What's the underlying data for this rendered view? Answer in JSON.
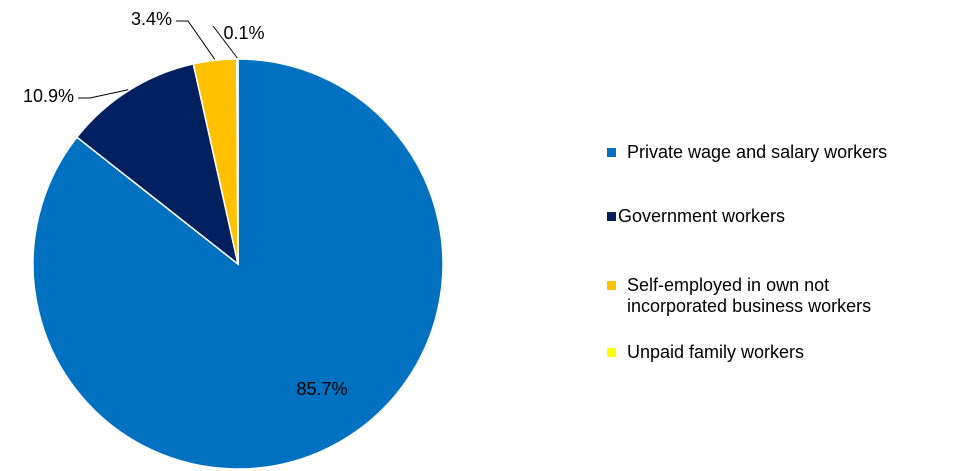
{
  "chart_data": {
    "type": "pie",
    "title": "",
    "slices": [
      {
        "name": "Private wage and salary workers",
        "value": 85.7,
        "label": "85.7%",
        "color": "#0070C0"
      },
      {
        "name": "Government workers",
        "value": 10.9,
        "label": "10.9%",
        "color": "#002060"
      },
      {
        "name": "Self-employed in own not incorporated business workers",
        "value": 3.4,
        "label": "3.4%",
        "color": "#FFC000"
      },
      {
        "name": "Unpaid family workers",
        "value": 0.1,
        "label": "0.1%",
        "color": "#FFFF00"
      }
    ],
    "legend_position": "right"
  },
  "legend": {
    "items": [
      {
        "label": "Private wage and salary workers",
        "color": "#0070C0"
      },
      {
        "label": "Government workers",
        "color": "#002060"
      },
      {
        "label": "Self-employed in own not\nincorporated business workers",
        "color": "#FFC000"
      },
      {
        "label": "Unpaid family workers",
        "color": "#FFFF00"
      }
    ]
  }
}
